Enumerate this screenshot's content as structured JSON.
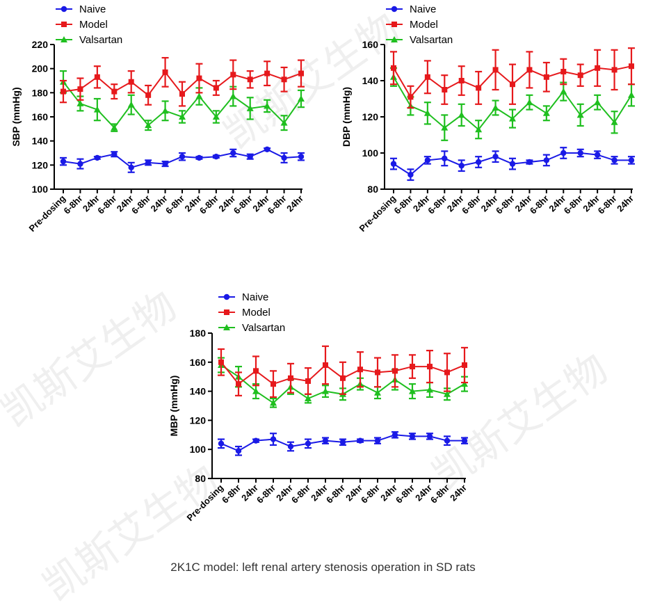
{
  "caption": "2K1C model: left renal artery stenosis operation in SD rats",
  "watermark": "凯斯艾生物",
  "colors": {
    "Naive": "#1a1ae6",
    "Model": "#e6191c",
    "Valsartan": "#1fbf1f",
    "axis": "#000000"
  },
  "chart_data": [
    {
      "type": "line",
      "panel": "SBP",
      "ylabel": "SBP (mmHg)",
      "ylim": [
        100,
        220
      ],
      "yticks": [
        100,
        120,
        140,
        160,
        180,
        200,
        220
      ],
      "legend": "top-left",
      "categories": [
        "Pre-dosing",
        "6-8hr",
        "24hr",
        "6-8hr",
        "24hr",
        "6-8hr",
        "24hr",
        "6-8hr",
        "24hr",
        "6-8hr",
        "24hr",
        "6-8hr",
        "24hr",
        "6-8hr",
        "24hr"
      ],
      "series": [
        {
          "name": "Naive",
          "marker": "circle",
          "values": [
            123,
            121,
            126,
            129,
            118,
            122,
            121,
            127,
            126,
            127,
            130,
            127,
            133,
            126,
            127
          ],
          "errors": [
            3,
            4,
            1,
            2,
            4,
            2,
            2,
            3,
            1,
            1,
            3,
            2,
            1,
            4,
            3
          ]
        },
        {
          "name": "Model",
          "marker": "square",
          "values": [
            181,
            183,
            193,
            181,
            189,
            178,
            197,
            179,
            192,
            184,
            195,
            191,
            196,
            191,
            196
          ],
          "errors": [
            9,
            9,
            9,
            6,
            9,
            8,
            12,
            10,
            12,
            6,
            12,
            7,
            10,
            10,
            11
          ]
        },
        {
          "name": "Valsartan",
          "marker": "triangle",
          "values": [
            189,
            171,
            166,
            151,
            170,
            153,
            165,
            160,
            177,
            160,
            177,
            167,
            169,
            155,
            175
          ],
          "errors": [
            9,
            6,
            9,
            3,
            8,
            4,
            8,
            5,
            7,
            5,
            8,
            9,
            5,
            6,
            7
          ]
        }
      ]
    },
    {
      "type": "line",
      "panel": "DBP",
      "ylabel": "DBP (mmHg)",
      "ylim": [
        80,
        160
      ],
      "yticks": [
        80,
        100,
        120,
        140,
        160
      ],
      "legend": "top-left",
      "categories": [
        "Pre-dosing",
        "6-8hr",
        "24hr",
        "6-8hr",
        "24hr",
        "6-8hr",
        "24hr",
        "6-8hr",
        "24hr",
        "6-8hr",
        "24hr",
        "6-8hr",
        "24hr",
        "6-8hr",
        "24hr"
      ],
      "series": [
        {
          "name": "Naive",
          "marker": "circle",
          "values": [
            94,
            88,
            96,
            97,
            93,
            95,
            98,
            94,
            95,
            96,
            100,
            100,
            99,
            96,
            96
          ],
          "errors": [
            3,
            3,
            2,
            4,
            3,
            3,
            3,
            3,
            1,
            3,
            3,
            2,
            2,
            2,
            2
          ]
        },
        {
          "name": "Model",
          "marker": "square",
          "values": [
            147,
            131,
            142,
            135,
            140,
            136,
            146,
            138,
            146,
            142,
            145,
            143,
            147,
            146,
            148
          ],
          "errors": [
            9,
            6,
            9,
            8,
            8,
            9,
            11,
            11,
            10,
            8,
            7,
            6,
            10,
            11,
            10
          ]
        },
        {
          "name": "Valsartan",
          "marker": "triangle",
          "values": [
            142,
            126,
            122,
            114,
            121,
            113,
            125,
            119,
            128,
            122,
            134,
            121,
            128,
            117,
            132
          ],
          "errors": [
            5,
            5,
            6,
            7,
            6,
            5,
            4,
            5,
            4,
            4,
            5,
            6,
            4,
            6,
            6
          ]
        }
      ]
    },
    {
      "type": "line",
      "panel": "MBP",
      "ylabel": "MBP (mmHg)",
      "ylim": [
        80,
        180
      ],
      "yticks": [
        80,
        100,
        120,
        140,
        160,
        180
      ],
      "legend": "top-left",
      "categories": [
        "Pre-dosing",
        "6-8hr",
        "24hr",
        "6-8hr",
        "24hr",
        "6-8hr",
        "24hr",
        "6-8hr",
        "24hr",
        "6-8hr",
        "24hr",
        "6-8hr",
        "24hr",
        "6-8hr",
        "24hr"
      ],
      "series": [
        {
          "name": "Naive",
          "marker": "circle",
          "values": [
            104,
            99,
            106,
            107,
            102,
            104,
            106,
            105,
            106,
            106,
            110,
            109,
            109,
            106,
            106
          ],
          "errors": [
            3,
            3,
            1,
            4,
            3,
            3,
            2,
            2,
            1,
            2,
            2,
            2,
            2,
            3,
            2
          ]
        },
        {
          "name": "Model",
          "marker": "square",
          "values": [
            160,
            145,
            154,
            145,
            149,
            147,
            158,
            149,
            155,
            153,
            154,
            157,
            157,
            153,
            158
          ],
          "errors": [
            9,
            8,
            10,
            9,
            10,
            9,
            13,
            11,
            12,
            10,
            11,
            8,
            11,
            13,
            12
          ]
        },
        {
          "name": "Valsartan",
          "marker": "triangle",
          "values": [
            158,
            150,
            140,
            132,
            143,
            135,
            140,
            138,
            145,
            139,
            148,
            140,
            141,
            138,
            145
          ],
          "errors": [
            5,
            7,
            5,
            3,
            5,
            3,
            4,
            4,
            4,
            4,
            7,
            5,
            5,
            4,
            5
          ]
        }
      ]
    }
  ]
}
